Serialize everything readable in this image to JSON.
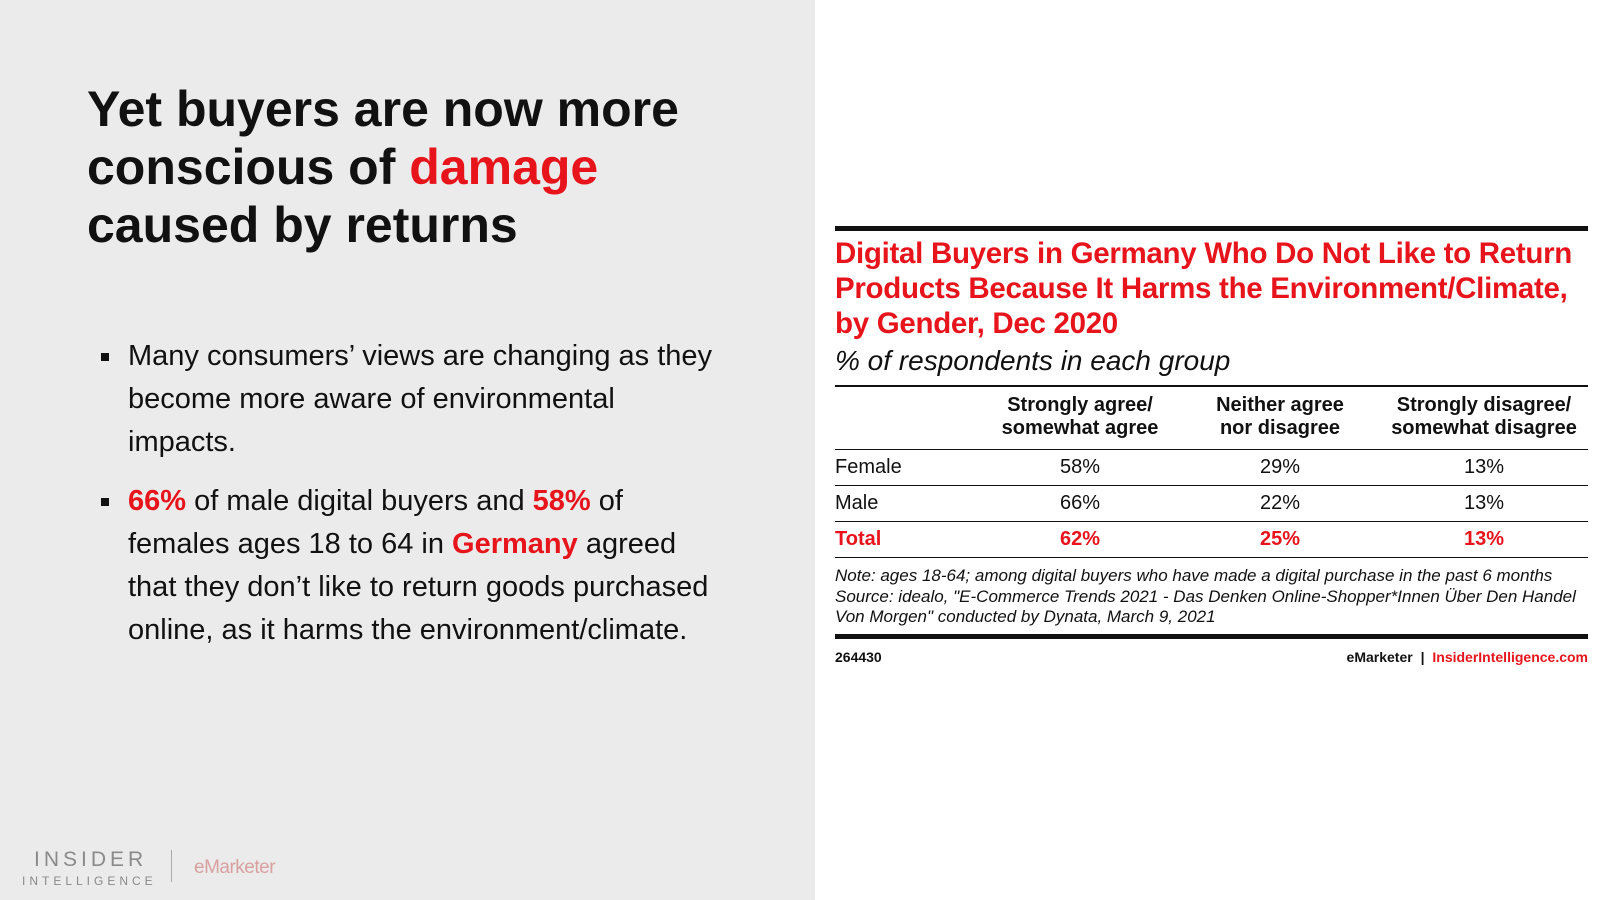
{
  "slide": {
    "title": [
      {
        "text": "Yet buyers are now more conscious of ",
        "red": false
      },
      {
        "text": "damage",
        "red": true
      },
      {
        "text": " caused by returns",
        "red": false
      }
    ],
    "bullets": [
      [
        {
          "text": "Many consumers’ views are changing as they become more aware of environmental impacts.",
          "red": false
        }
      ],
      [
        {
          "text": "66%",
          "red": true
        },
        {
          "text": " of male digital buyers and ",
          "red": false
        },
        {
          "text": "58%",
          "red": true
        },
        {
          "text": " of females ages 18 to 64 in ",
          "red": false
        },
        {
          "text": "Germany",
          "red": true
        },
        {
          "text": " agreed that they don’t like to return goods purchased online, as it harms the environment/climate.",
          "red": false
        }
      ]
    ],
    "logo": {
      "line1": "INSIDER",
      "line2": "INTELLIGENCE",
      "brand": "eMarketer"
    }
  },
  "table": {
    "title": "Digital Buyers in Germany Who Do Not Like to Return Products Because It Harms the Environment/Climate, by Gender, Dec 2020",
    "subtitle": "% of respondents in each group",
    "columns": [
      [
        "Strongly agree/",
        "somewhat agree"
      ],
      [
        "Neither agree",
        "nor disagree"
      ],
      [
        "Strongly disagree/",
        "somewhat disagree"
      ]
    ],
    "rows": [
      [
        "Female",
        "58%",
        "29%",
        "13%"
      ],
      [
        "Male",
        "66%",
        "22%",
        "13%"
      ],
      [
        "Total",
        "62%",
        "25%",
        "13%"
      ]
    ],
    "note": "Note: ages 18-64; among digital buyers who have made a digital purchase in the past 6 months",
    "source": "Source: idealo, \"E-Commerce Trends 2021 - Das Denken Online-Shopper*Innen Über Den Handel Von Morgen\" conducted by Dynata, March 9, 2021",
    "chart_id": "264430",
    "brand": "eMarketer",
    "separator": "|",
    "site": "InsiderIntelligence.com"
  }
}
